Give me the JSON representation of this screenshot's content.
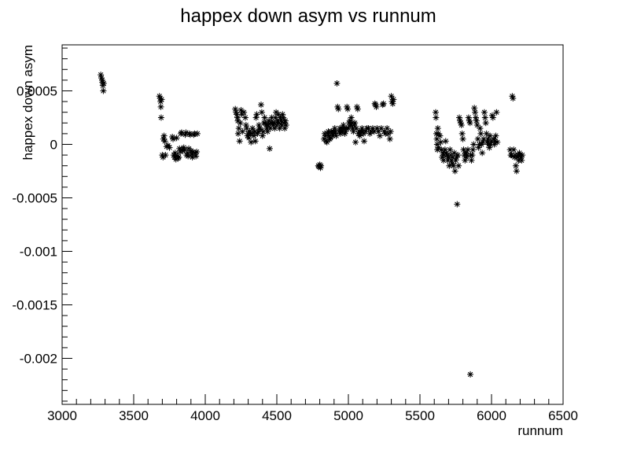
{
  "chart_data": {
    "type": "scatter",
    "title": "happex down asym vs runnum",
    "xlabel": "runnum",
    "ylabel": "happex down asym",
    "xlim": [
      3000,
      6500
    ],
    "ylim": [
      -0.00243,
      0.00093
    ],
    "xticks": [
      {
        "v": 3000,
        "label": "3000"
      },
      {
        "v": 3500,
        "label": "3500"
      },
      {
        "v": 4000,
        "label": "4000"
      },
      {
        "v": 4500,
        "label": "4500"
      },
      {
        "v": 5000,
        "label": "5000"
      },
      {
        "v": 5500,
        "label": "5500"
      },
      {
        "v": 6000,
        "label": "6000"
      },
      {
        "v": 6500,
        "label": "6500"
      }
    ],
    "yticks": [
      {
        "v": 0.0005,
        "label": "0.0005"
      },
      {
        "v": 0,
        "label": "0"
      },
      {
        "v": -0.0005,
        "label": "-0.0005"
      },
      {
        "v": -0.001,
        "label": "-0.001"
      },
      {
        "v": -0.0015,
        "label": "-0.0015"
      },
      {
        "v": -0.002,
        "label": "-0.002"
      }
    ],
    "marker": "asterisk",
    "grid": false,
    "points": [
      [
        3270,
        0.00065
      ],
      [
        3275,
        0.00062
      ],
      [
        3280,
        0.0006
      ],
      [
        3282,
        0.00058
      ],
      [
        3285,
        0.00055
      ],
      [
        3288,
        0.0005
      ],
      [
        3290,
        0.00057
      ],
      [
        3680,
        0.00045
      ],
      [
        3685,
        0.00043
      ],
      [
        3688,
        0.0004
      ],
      [
        3690,
        0.00035
      ],
      [
        3692,
        0.00025
      ],
      [
        3695,
        0.00042
      ],
      [
        3700,
        -0.0001
      ],
      [
        3705,
        -0.00012
      ],
      [
        3708,
        5e-05
      ],
      [
        3712,
        8e-05
      ],
      [
        3718,
        3e-05
      ],
      [
        3722,
        -0.0001
      ],
      [
        3730,
        -2e-05
      ],
      [
        3740,
        -1e-05
      ],
      [
        3750,
        -3e-05
      ],
      [
        3770,
        7e-05
      ],
      [
        3775,
        5e-05
      ],
      [
        3780,
        -0.0001
      ],
      [
        3785,
        -0.00012
      ],
      [
        3790,
        -8e-05
      ],
      [
        3795,
        -0.00014
      ],
      [
        3800,
        6e-05
      ],
      [
        3805,
        -0.00011
      ],
      [
        3810,
        -0.00013
      ],
      [
        3815,
        -0.00012
      ],
      [
        3820,
        -4e-05
      ],
      [
        3825,
        -7e-05
      ],
      [
        3830,
        0.0001
      ],
      [
        3835,
        0.00011
      ],
      [
        3840,
        -5e-05
      ],
      [
        3845,
        -6e-05
      ],
      [
        3850,
        -3e-05
      ],
      [
        3855,
        -5e-05
      ],
      [
        3860,
        9e-05
      ],
      [
        3865,
        0.00011
      ],
      [
        3870,
        -0.0001
      ],
      [
        3875,
        -8e-05
      ],
      [
        3880,
        -0.00011
      ],
      [
        3885,
        -4e-05
      ],
      [
        3890,
        0.0001
      ],
      [
        3895,
        9e-05
      ],
      [
        3900,
        -6e-05
      ],
      [
        3905,
        -9e-05
      ],
      [
        3910,
        -0.00012
      ],
      [
        3915,
        -7e-05
      ],
      [
        3920,
        9e-05
      ],
      [
        3925,
        0.0001
      ],
      [
        3930,
        -8e-05
      ],
      [
        3935,
        -0.00011
      ],
      [
        3940,
        -7e-05
      ],
      [
        3945,
        0.0001
      ],
      [
        4210,
        0.00033
      ],
      [
        4215,
        0.0003
      ],
      [
        4220,
        0.00028
      ],
      [
        4225,
        0.00025
      ],
      [
        4228,
        0.00022
      ],
      [
        4230,
        0.0001
      ],
      [
        4235,
        0.00015
      ],
      [
        4240,
        3e-05
      ],
      [
        4245,
        0.0002
      ],
      [
        4250,
        0.00032
      ],
      [
        4255,
        0.00028
      ],
      [
        4260,
        0.00012
      ],
      [
        4270,
        0.0003
      ],
      [
        4280,
        0.00025
      ],
      [
        4285,
        0.00018
      ],
      [
        4290,
        0.00015
      ],
      [
        4295,
        8e-05
      ],
      [
        4300,
        0.0001
      ],
      [
        4305,
        6e-05
      ],
      [
        4310,
        0.00012
      ],
      [
        4315,
        0.0001
      ],
      [
        4320,
        2e-05
      ],
      [
        4325,
        0.0001
      ],
      [
        4330,
        0.00015
      ],
      [
        4340,
        8e-05
      ],
      [
        4345,
        0.00012
      ],
      [
        4350,
        3e-05
      ],
      [
        4355,
        0.00025
      ],
      [
        4360,
        0.00028
      ],
      [
        4365,
        0.0001
      ],
      [
        4370,
        0.00012
      ],
      [
        4375,
        0.00018
      ],
      [
        4380,
        0.00015
      ],
      [
        4385,
        0.00014
      ],
      [
        4390,
        0.00037
      ],
      [
        4395,
        0.0003
      ],
      [
        4400,
        8e-05
      ],
      [
        4405,
        0.00012
      ],
      [
        4410,
        0.0002
      ],
      [
        4415,
        0.00025
      ],
      [
        4420,
        0.0002
      ],
      [
        4425,
        0.00018
      ],
      [
        4430,
        0.00015
      ],
      [
        4435,
        0.00012
      ],
      [
        4440,
        0.00018
      ],
      [
        4445,
        0.00022
      ],
      [
        4450,
        -4e-05
      ],
      [
        4455,
        0.00015
      ],
      [
        4460,
        0.0002
      ],
      [
        4465,
        0.00025
      ],
      [
        4470,
        0.0002
      ],
      [
        4475,
        0.00018
      ],
      [
        4480,
        0.0002
      ],
      [
        4485,
        0.00015
      ],
      [
        4490,
        0.00025
      ],
      [
        4495,
        0.0003
      ],
      [
        4500,
        0.00018
      ],
      [
        4505,
        0.00022
      ],
      [
        4510,
        0.00028
      ],
      [
        4515,
        0.0002
      ],
      [
        4520,
        0.00015
      ],
      [
        4525,
        0.00025
      ],
      [
        4530,
        0.00022
      ],
      [
        4535,
        0.00018
      ],
      [
        4540,
        0.00028
      ],
      [
        4545,
        0.00025
      ],
      [
        4550,
        0.0002
      ],
      [
        4555,
        0.00015
      ],
      [
        4560,
        0.00022
      ],
      [
        4565,
        0.00018
      ],
      [
        4790,
        -0.0002
      ],
      [
        4795,
        -0.00021
      ],
      [
        4800,
        -0.00019
      ],
      [
        4805,
        -0.00022
      ],
      [
        4808,
        -0.0002
      ],
      [
        4830,
        5e-05
      ],
      [
        4835,
        0.0001
      ],
      [
        4840,
        8e-05
      ],
      [
        4845,
        3e-05
      ],
      [
        4850,
        2e-05
      ],
      [
        4855,
        0.0001
      ],
      [
        4860,
        0.00012
      ],
      [
        4865,
        8e-05
      ],
      [
        4870,
        5e-05
      ],
      [
        4875,
        6e-05
      ],
      [
        4880,
        0.00012
      ],
      [
        4885,
        0.0001
      ],
      [
        4890,
        8e-05
      ],
      [
        4895,
        0.00012
      ],
      [
        4900,
        0.0001
      ],
      [
        4905,
        0.00015
      ],
      [
        4910,
        0.00012
      ],
      [
        4915,
        8e-05
      ],
      [
        4920,
        0.00057
      ],
      [
        4925,
        0.00035
      ],
      [
        4930,
        0.00033
      ],
      [
        4935,
        0.00012
      ],
      [
        4940,
        0.00015
      ],
      [
        4945,
        0.0001
      ],
      [
        4950,
        0.00012
      ],
      [
        4955,
        0.00015
      ],
      [
        4960,
        0.00012
      ],
      [
        4965,
        0.00018
      ],
      [
        4970,
        0.00015
      ],
      [
        4975,
        0.0001
      ],
      [
        4980,
        0.00012
      ],
      [
        4985,
        0.00015
      ],
      [
        4990,
        0.00035
      ],
      [
        4995,
        0.00033
      ],
      [
        5000,
        0.00015
      ],
      [
        5005,
        0.0002
      ],
      [
        5010,
        0.00022
      ],
      [
        5015,
        0.00018
      ],
      [
        5020,
        0.00025
      ],
      [
        5025,
        0.0002
      ],
      [
        5030,
        0.00015
      ],
      [
        5035,
        0.00012
      ],
      [
        5040,
        0.00018
      ],
      [
        5045,
        0.0002
      ],
      [
        5050,
        2e-05
      ],
      [
        5055,
        0.00015
      ],
      [
        5060,
        0.00035
      ],
      [
        5065,
        0.00033
      ],
      [
        5070,
        0.0001
      ],
      [
        5075,
        0.00012
      ],
      [
        5080,
        8e-05
      ],
      [
        5085,
        0.0001
      ],
      [
        5090,
        0.00012
      ],
      [
        5095,
        0.00015
      ],
      [
        5100,
        0.00012
      ],
      [
        5105,
        0.0001
      ],
      [
        5110,
        3e-05
      ],
      [
        5120,
        0.00012
      ],
      [
        5130,
        0.00015
      ],
      [
        5140,
        0.00015
      ],
      [
        5150,
        0.0001
      ],
      [
        5160,
        0.00012
      ],
      [
        5170,
        0.00015
      ],
      [
        5180,
        0.00012
      ],
      [
        5185,
        0.00038
      ],
      [
        5190,
        0.00037
      ],
      [
        5195,
        0.00035
      ],
      [
        5200,
        0.00015
      ],
      [
        5210,
        0.00012
      ],
      [
        5220,
        8e-05
      ],
      [
        5230,
        0.00015
      ],
      [
        5240,
        0.00037
      ],
      [
        5245,
        0.00038
      ],
      [
        5250,
        0.00012
      ],
      [
        5260,
        0.0001
      ],
      [
        5270,
        0.00015
      ],
      [
        5280,
        0.0001
      ],
      [
        5290,
        5e-05
      ],
      [
        5295,
        0.00012
      ],
      [
        5300,
        0.00045
      ],
      [
        5305,
        0.0004
      ],
      [
        5310,
        0.00038
      ],
      [
        5315,
        0.00042
      ],
      [
        5610,
        0.0003
      ],
      [
        5612,
        0.00025
      ],
      [
        5615,
        0.0001
      ],
      [
        5618,
        5e-05
      ],
      [
        5620,
        0.0
      ],
      [
        5622,
        -5e-05
      ],
      [
        5625,
        0.00015
      ],
      [
        5628,
        0.0001
      ],
      [
        5630,
        -3e-05
      ],
      [
        5640,
        8e-05
      ],
      [
        5645,
        2e-05
      ],
      [
        5650,
        -5e-05
      ],
      [
        5655,
        -0.00012
      ],
      [
        5660,
        -8e-05
      ],
      [
        5665,
        -0.00015
      ],
      [
        5670,
        -0.0001
      ],
      [
        5675,
        -5e-05
      ],
      [
        5680,
        3e-05
      ],
      [
        5685,
        -8e-05
      ],
      [
        5690,
        -0.0001
      ],
      [
        5695,
        -0.00015
      ],
      [
        5700,
        -0.00012
      ],
      [
        5705,
        -0.0002
      ],
      [
        5710,
        -5e-05
      ],
      [
        5715,
        -0.0001
      ],
      [
        5720,
        -0.00015
      ],
      [
        5725,
        -0.00018
      ],
      [
        5730,
        -0.00012
      ],
      [
        5735,
        -0.0002
      ],
      [
        5740,
        -8e-05
      ],
      [
        5745,
        -0.00025
      ],
      [
        5750,
        -0.00015
      ],
      [
        5755,
        -0.00012
      ],
      [
        5760,
        -0.00056
      ],
      [
        5765,
        -0.0001
      ],
      [
        5770,
        -0.0002
      ],
      [
        5775,
        0.00025
      ],
      [
        5780,
        0.00022
      ],
      [
        5785,
        0.0002
      ],
      [
        5790,
        0.00018
      ],
      [
        5795,
        0.0001
      ],
      [
        5800,
        5e-05
      ],
      [
        5805,
        -5e-05
      ],
      [
        5810,
        -0.0001
      ],
      [
        5815,
        -0.00015
      ],
      [
        5820,
        -8e-05
      ],
      [
        5825,
        -0.00012
      ],
      [
        5830,
        -0.0001
      ],
      [
        5835,
        -5e-05
      ],
      [
        5840,
        0.00025
      ],
      [
        5845,
        0.00022
      ],
      [
        5850,
        0.0002
      ],
      [
        5852,
        -0.00215
      ],
      [
        5855,
        -0.0001
      ],
      [
        5860,
        -0.00015
      ],
      [
        5865,
        -0.0001
      ],
      [
        5870,
        -5e-05
      ],
      [
        5875,
        0.0
      ],
      [
        5880,
        0.00034
      ],
      [
        5885,
        0.0003
      ],
      [
        5890,
        0.00025
      ],
      [
        5895,
        0.00022
      ],
      [
        5900,
        0.00018
      ],
      [
        5905,
        5e-05
      ],
      [
        5910,
        -3e-05
      ],
      [
        5915,
        0.0
      ],
      [
        5920,
        0.00015
      ],
      [
        5925,
        0.0001
      ],
      [
        5930,
        0.0
      ],
      [
        5935,
        -8e-05
      ],
      [
        5940,
        2e-05
      ],
      [
        5945,
        5e-05
      ],
      [
        5950,
        0.0003
      ],
      [
        5955,
        0.00025
      ],
      [
        5960,
        0.0002
      ],
      [
        5965,
        0.0001
      ],
      [
        5970,
        2e-05
      ],
      [
        5975,
        5e-05
      ],
      [
        5980,
        0.0
      ],
      [
        5985,
        -3e-05
      ],
      [
        5990,
        8e-05
      ],
      [
        5995,
        0.0
      ],
      [
        6000,
        3e-05
      ],
      [
        6005,
        0.00027
      ],
      [
        6010,
        0.00025
      ],
      [
        6015,
        5e-05
      ],
      [
        6020,
        0.0
      ],
      [
        6025,
        3e-05
      ],
      [
        6030,
        8e-05
      ],
      [
        6035,
        0.0003
      ],
      [
        6040,
        2e-05
      ],
      [
        6130,
        -5e-05
      ],
      [
        6135,
        -0.0001
      ],
      [
        6140,
        -0.0001
      ],
      [
        6145,
        0.00045
      ],
      [
        6150,
        0.00043
      ],
      [
        6155,
        -5e-05
      ],
      [
        6160,
        -0.00012
      ],
      [
        6165,
        -0.0001
      ],
      [
        6170,
        -0.0002
      ],
      [
        6175,
        -0.00025
      ],
      [
        6180,
        -0.00012
      ],
      [
        6185,
        -0.0001
      ],
      [
        6190,
        -0.00015
      ],
      [
        6195,
        -8e-05
      ],
      [
        6200,
        -0.0001
      ],
      [
        6205,
        -0.00012
      ],
      [
        6210,
        -0.00015
      ],
      [
        6215,
        -0.0001
      ]
    ]
  }
}
